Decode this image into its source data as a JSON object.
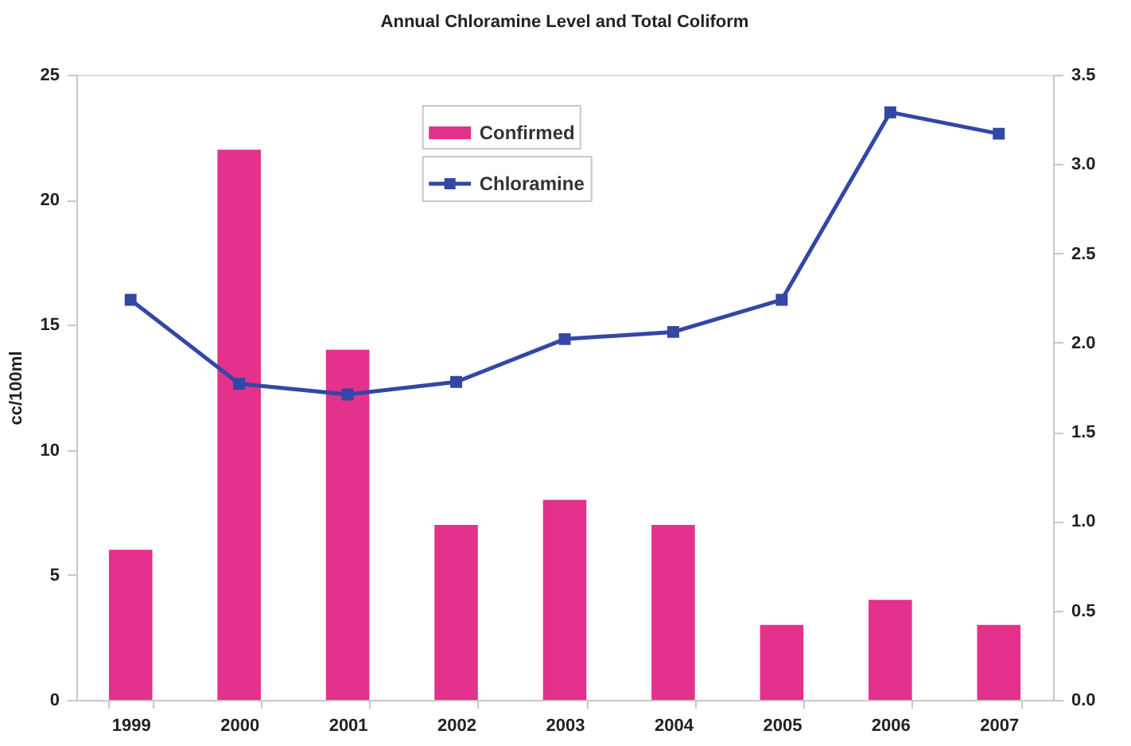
{
  "chart_data": {
    "type": "bar",
    "title": "Annual Chloramine Level and Total Coliform",
    "ylabel": "cc/100ml",
    "categories": [
      "1999",
      "2000",
      "2001",
      "2002",
      "2003",
      "2004",
      "2005",
      "2006",
      "2007"
    ],
    "series": [
      {
        "name": "Confirmed",
        "color": "#e4318c",
        "values": [
          6,
          22,
          14,
          7,
          8,
          7,
          3,
          4,
          3
        ]
      },
      {
        "name": "Chloramine",
        "type": "line",
        "axis": "y2",
        "color": "#3347a5",
        "values": [
          2.24,
          1.77,
          1.71,
          1.78,
          2.02,
          2.06,
          2.24,
          3.29,
          3.17
        ]
      }
    ],
    "ylim": [
      0,
      25
    ],
    "yticks": [
      0,
      5,
      10,
      15,
      20,
      25
    ],
    "y2lim": [
      0,
      3.5
    ],
    "y2ticks": [
      {
        "value": 0,
        "label": "0.0"
      },
      0.5,
      {
        "value": 1,
        "label": "1.0"
      },
      1.5,
      {
        "value": 2,
        "label": "2.0"
      },
      2.5,
      {
        "value": 3,
        "label": "3.0"
      },
      3.5
    ],
    "legend": "top",
    "marker": "square",
    "line_style": "solid"
  }
}
